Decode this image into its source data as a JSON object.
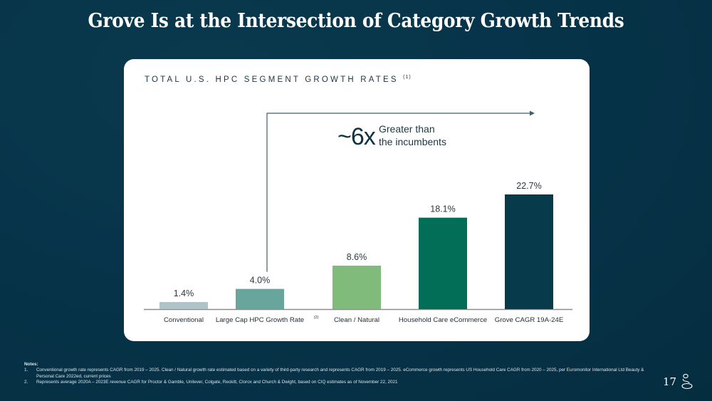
{
  "slide": {
    "title": "Grove Is at the Intersection of Category Growth Trends",
    "page_number": "17",
    "logo_icon": "grove-g-logo-icon",
    "background_color": "#07344a"
  },
  "card": {
    "title": "TOTAL U.S. HPC SEGMENT GROWTH RATES",
    "title_footnote": "(1)"
  },
  "callout": {
    "multiplier": "~6x",
    "line1": "Greater than",
    "line2": "the incumbents",
    "from_category_index": 1,
    "to_category_index": 4
  },
  "chart_data": {
    "type": "bar",
    "title": "TOTAL U.S. HPC SEGMENT GROWTH RATES (1)",
    "categories": [
      "Conventional",
      "Large Cap HPC Growth Rate",
      "Clean / Natural",
      "Household Care eCommerce",
      "Grove CAGR 19A-24E"
    ],
    "category_footnotes": [
      "",
      "(2)",
      "",
      "",
      ""
    ],
    "values": [
      1.4,
      4.0,
      8.6,
      18.1,
      22.7
    ],
    "value_labels": [
      "1.4%",
      "4.0%",
      "8.6%",
      "18.1%",
      "22.7%"
    ],
    "colors": [
      "#aec4c8",
      "#68a59c",
      "#80bb7b",
      "#026e58",
      "#073a4b"
    ],
    "xlabel": "",
    "ylabel": "",
    "ylim": [
      0,
      30
    ],
    "grid": false,
    "legend": "none",
    "annotation": "~6x Greater than the incumbents"
  },
  "notes": {
    "header": "Notes:",
    "items": [
      {
        "num": "1.",
        "text": "Conventional growth rate represents CAGR from 2019 – 2025. Clean / Natural growth rate estimated based on a variety of third-party research and represents CAGR from 2019 – 2025. eCommerce growth represents US Household Care CAGR from 2020 – 2025, per Euromonitor International Ltd Beauty & Personal Care 2022ed, current prices"
      },
      {
        "num": "2.",
        "text": "Represents average 2020A – 2023E revenue CAGR for Proctor & Gamble, Unilever, Colgate, Reckitt, Clorox and Church & Dwight, based on CIQ estimates as of November 22, 2021"
      }
    ]
  }
}
